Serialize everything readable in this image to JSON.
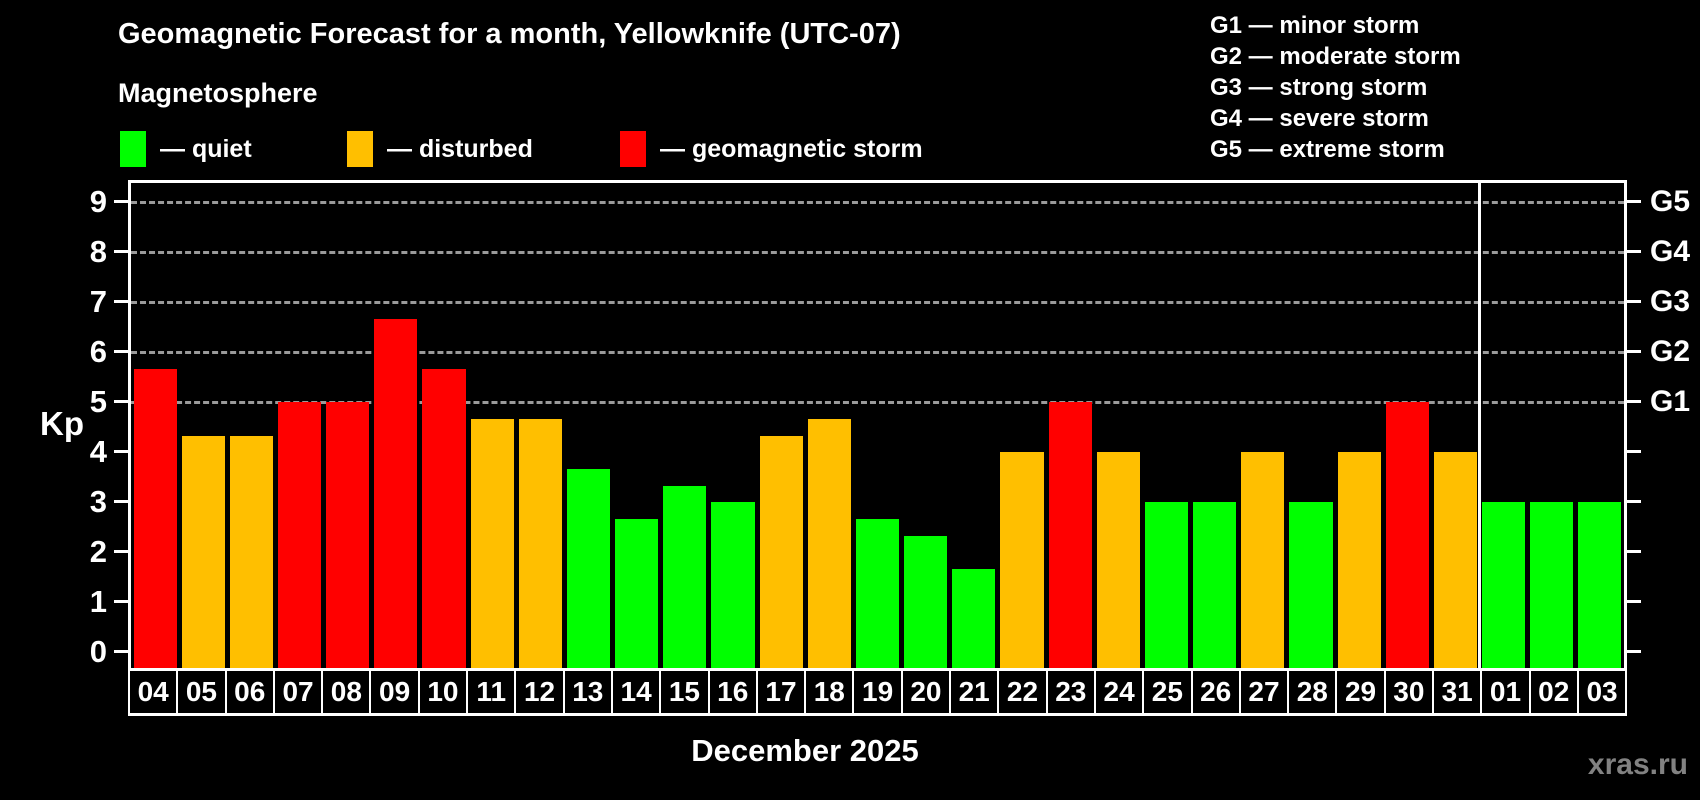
{
  "title": "Geomagnetic Forecast for a month, Yellowknife (UTC-07)",
  "subtitle": "Magnetosphere",
  "legend": {
    "items": [
      {
        "key": "quiet",
        "label": "— quiet",
        "color": "#00ff00"
      },
      {
        "key": "disturbed",
        "label": "— disturbed",
        "color": "#ffbf00"
      },
      {
        "key": "storm",
        "label": "— geomagnetic storm",
        "color": "#ff0000"
      }
    ]
  },
  "storm_scale_legend": [
    "G1 — minor storm",
    "G2 — moderate storm",
    "G3 — strong storm",
    "G4 — severe storm",
    "G5 — extreme storm"
  ],
  "y_axis": {
    "label": "Kp",
    "ticks": [
      0,
      1,
      2,
      3,
      4,
      5,
      6,
      7,
      8,
      9
    ]
  },
  "right_axis": {
    "labels": [
      {
        "kp": 5,
        "label": "G1"
      },
      {
        "kp": 6,
        "label": "G2"
      },
      {
        "kp": 7,
        "label": "G3"
      },
      {
        "kp": 8,
        "label": "G4"
      },
      {
        "kp": 9,
        "label": "G5"
      }
    ]
  },
  "x_axis_title": "December 2025",
  "watermark": "xras.ru",
  "chart_data": {
    "type": "bar",
    "title": "Geomagnetic Forecast for a month, Yellowknife (UTC-07)",
    "ylabel": "Kp",
    "xlabel": "December 2025",
    "ylim": [
      0,
      9
    ],
    "gridlines": [
      5,
      6,
      7,
      8,
      9
    ],
    "grid": "dashed, only at G-storm levels 5-9",
    "legend_position": "top",
    "categories": [
      "04",
      "05",
      "06",
      "07",
      "08",
      "09",
      "10",
      "11",
      "12",
      "13",
      "14",
      "15",
      "16",
      "17",
      "18",
      "19",
      "20",
      "21",
      "22",
      "23",
      "24",
      "25",
      "26",
      "27",
      "28",
      "29",
      "30",
      "31",
      "01",
      "02",
      "03"
    ],
    "values": [
      5.67,
      4.33,
      4.33,
      5,
      5,
      6.67,
      5.67,
      4.67,
      4.67,
      3.67,
      2.67,
      3.33,
      3,
      4.33,
      4.67,
      2.67,
      2.33,
      1.67,
      4,
      5,
      4,
      3,
      3,
      4,
      3,
      4,
      5,
      4,
      3,
      3,
      3
    ],
    "statuses": [
      "storm",
      "disturbed",
      "disturbed",
      "storm",
      "storm",
      "storm",
      "storm",
      "disturbed",
      "disturbed",
      "quiet",
      "quiet",
      "quiet",
      "quiet",
      "disturbed",
      "disturbed",
      "quiet",
      "quiet",
      "quiet",
      "disturbed",
      "storm",
      "disturbed",
      "quiet",
      "quiet",
      "disturbed",
      "quiet",
      "disturbed",
      "storm",
      "disturbed",
      "quiet",
      "quiet",
      "quiet"
    ],
    "status_colors": {
      "quiet": "#00ff00",
      "disturbed": "#ffbf00",
      "storm": "#ff0000"
    },
    "month_boundary_after_index": 27
  }
}
